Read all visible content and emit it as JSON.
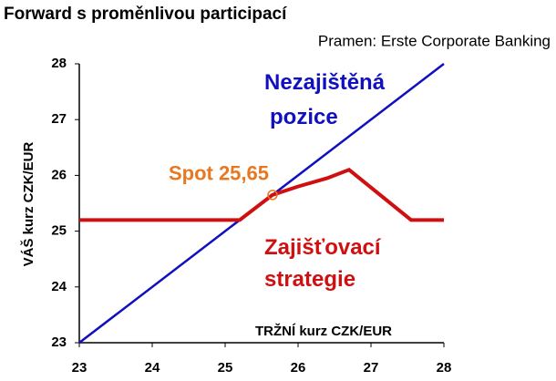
{
  "chart_data": {
    "type": "line",
    "title": "Forward s proměnlivou participací",
    "subtitle": "Pramen: Erste Corporate Banking",
    "x_label": "TRŽNÍ kurz CZK/EUR",
    "y_label": "VÁŠ kurz CZK/EUR",
    "xlim": [
      23,
      28
    ],
    "xticks": [
      23,
      24,
      25,
      26,
      27,
      28
    ],
    "ylim": [
      23,
      28
    ],
    "yticks": [
      23,
      24,
      25,
      26,
      27,
      28
    ],
    "grid": false,
    "series": [
      {
        "name": "Nezajištěná pozice",
        "color": "#1010c0",
        "x": [
          23,
          28
        ],
        "values": [
          23,
          28
        ]
      },
      {
        "name": "Zajišťovací strategie",
        "color": "#d01010",
        "x": [
          23,
          25.2,
          25.65,
          26.0,
          26.4,
          26.7,
          27.55,
          28
        ],
        "values": [
          25.2,
          25.2,
          25.65,
          25.8,
          25.95,
          26.1,
          25.2,
          25.2
        ]
      }
    ],
    "annotations": [
      {
        "text": "Spot 25,65",
        "x": 25.65,
        "y": 25.65,
        "color": "#e87722"
      }
    ]
  }
}
